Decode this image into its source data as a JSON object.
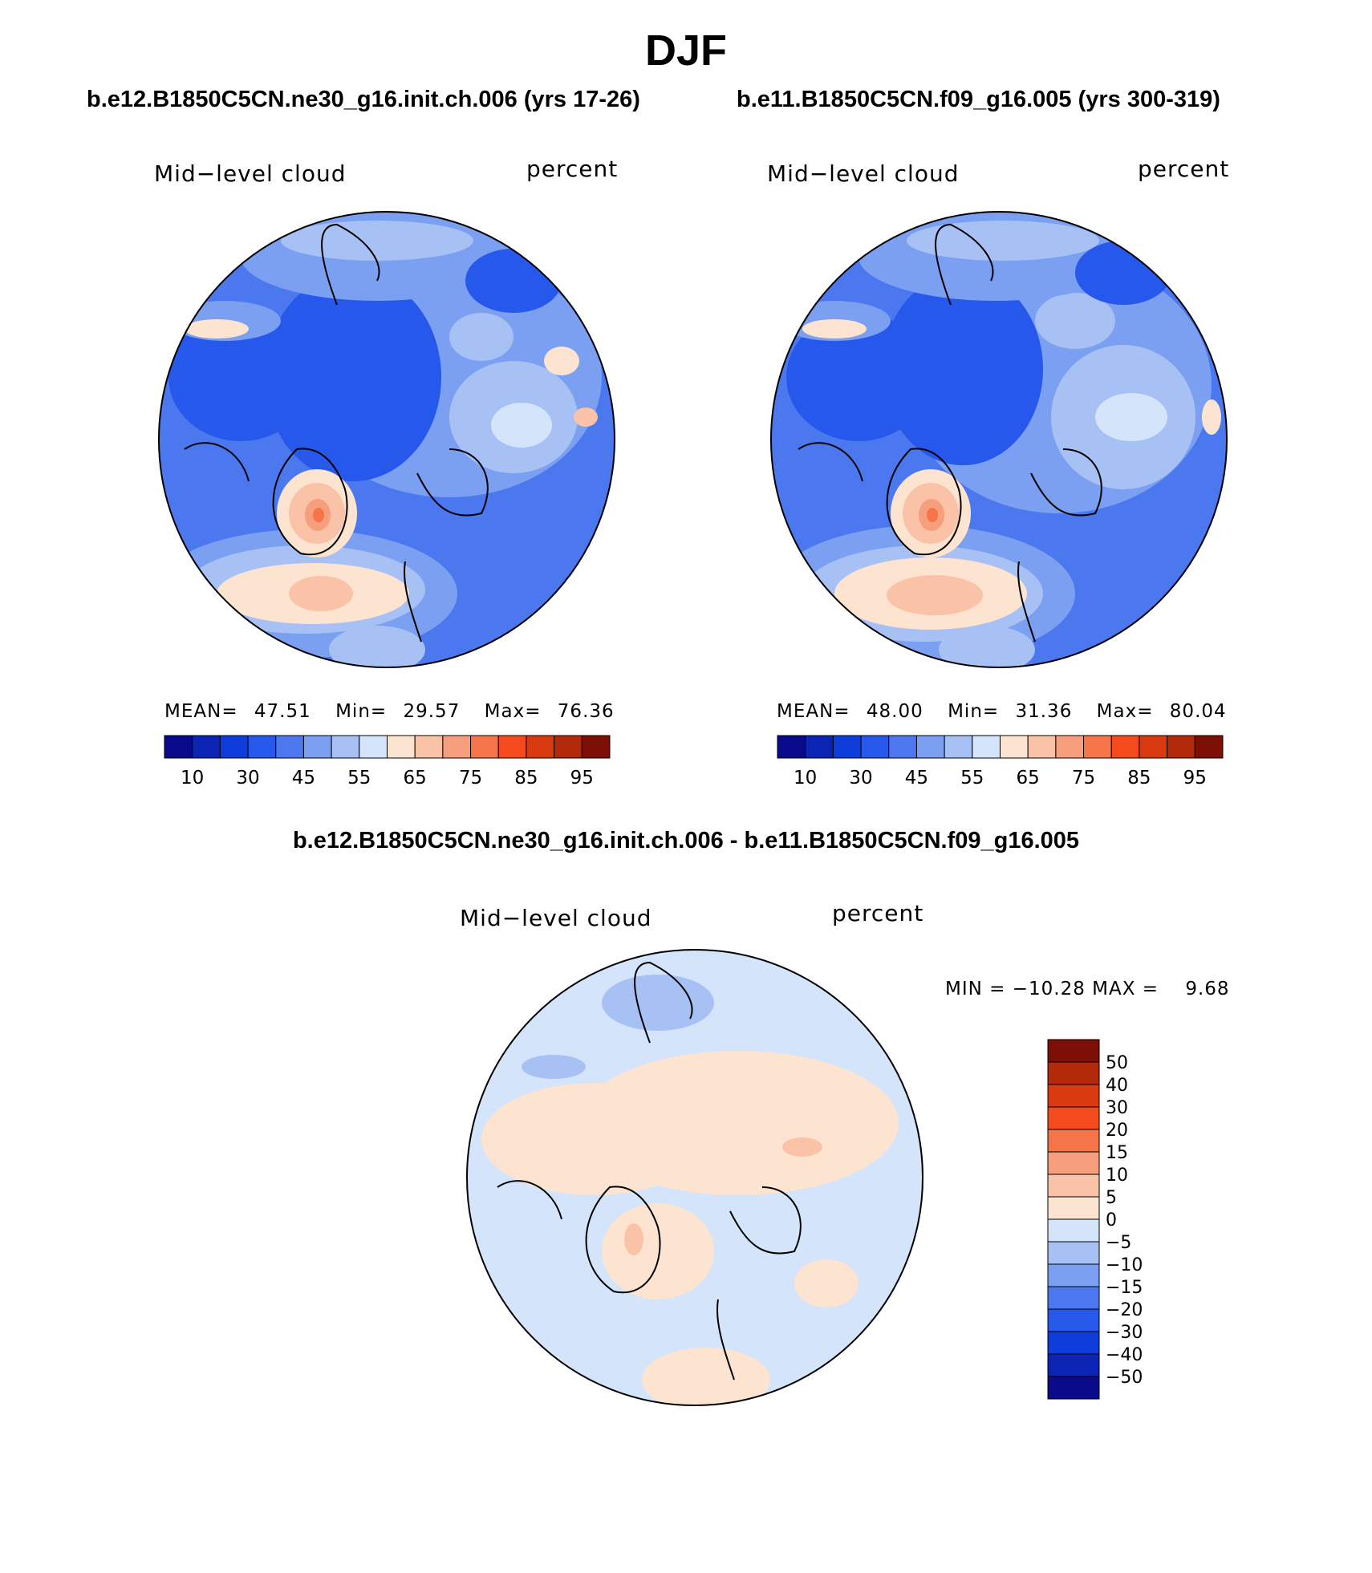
{
  "title": "DJF",
  "panels": [
    {
      "case_title": "b.e12.B1850C5CN.ne30_g16.init.ch.006 (yrs 17-26)",
      "variable": "Mid−level cloud",
      "units": "percent",
      "stats": {
        "mean_label": "MEAN=",
        "mean": "47.51",
        "min_label": "Min=",
        "min": "29.57",
        "max_label": "Max=",
        "max": "76.36"
      }
    },
    {
      "case_title": "b.e11.B1850C5CN.f09_g16.005 (yrs 300-319)",
      "variable": "Mid−level cloud",
      "units": "percent",
      "stats": {
        "mean_label": "MEAN=",
        "mean": "48.00",
        "min_label": "Min=",
        "min": "31.36",
        "max_label": "Max=",
        "max": "80.04"
      }
    }
  ],
  "diff_panel": {
    "title": "b.e12.B1850C5CN.ne30_g16.init.ch.006 - b.e11.B1850C5CN.f09_g16.005",
    "variable": "Mid−level cloud",
    "units": "percent",
    "minmax": "MIN = −10.28 MAX =    9.68"
  },
  "colorbar_abs": {
    "colors": [
      "#0a0a8c",
      "#0b24b4",
      "#0f3ddb",
      "#2658eb",
      "#4b78ee",
      "#7b9ff1",
      "#a8c1f4",
      "#d4e4fa",
      "#fde4d0",
      "#fac2a6",
      "#f79e7c",
      "#f57548",
      "#f34b1e",
      "#d93a10",
      "#b32a0a",
      "#7d0f06"
    ],
    "tick_labels": [
      "10",
      "30",
      "45",
      "55",
      "65",
      "75",
      "85",
      "95"
    ]
  },
  "colorbar_diff": {
    "colors": [
      "#0a0a8c",
      "#0b24b4",
      "#0f3ddb",
      "#2658eb",
      "#4b78ee",
      "#7b9ff1",
      "#a8c1f4",
      "#d4e4fa",
      "#fde4d0",
      "#fac2a6",
      "#f79e7c",
      "#f57548",
      "#f34b1e",
      "#d93a10",
      "#b32a0a",
      "#7d0f06"
    ],
    "tick_labels": [
      "50",
      "40",
      "30",
      "20",
      "15",
      "10",
      "5",
      "0",
      "−5",
      "−10",
      "−15",
      "−20",
      "−30",
      "−40",
      "−50"
    ]
  }
}
